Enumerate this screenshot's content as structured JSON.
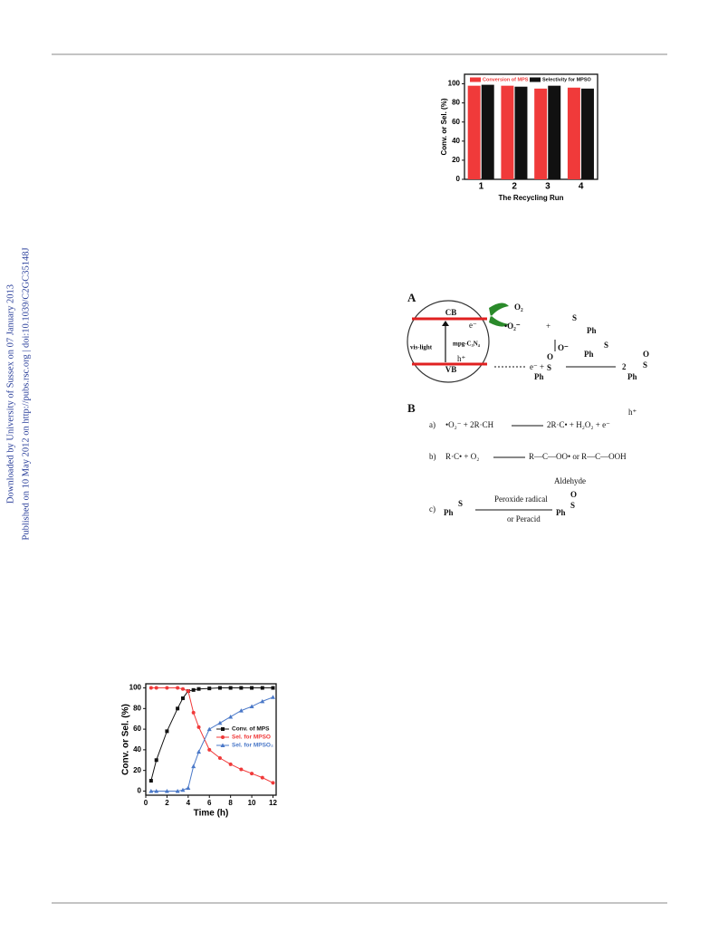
{
  "side_note": [
    "Downloaded by University of Sussex on 07 January 2013",
    "Published on 10 May 2012 on http://pubs.rsc.org | doi:10.1039/C2GC35148J"
  ],
  "chart_data": [
    {
      "type": "bar",
      "categories": [
        "1",
        "2",
        "3",
        "4"
      ],
      "series": [
        {
          "name": "Conversion of MPS",
          "color": "#f03a3a",
          "values": [
            98,
            98,
            95,
            96
          ]
        },
        {
          "name": "Selectivity for MPSO",
          "color": "#111111",
          "values": [
            99,
            97,
            98,
            95
          ]
        }
      ],
      "xlabel": "The Recycling Run",
      "ylabel": "Conv. or Sel. (%)",
      "ylim": [
        0,
        110
      ],
      "yticks": [
        0,
        20,
        40,
        60,
        80,
        100
      ],
      "legend": "top"
    },
    {
      "type": "line",
      "x": [
        0.5,
        1,
        2,
        3,
        3.5,
        4,
        4.5,
        5,
        6,
        7,
        8,
        9,
        10,
        11,
        12
      ],
      "series": [
        {
          "name": "Conv. of MPS",
          "color": "#111111",
          "marker": "square",
          "values": [
            10,
            30,
            58,
            80,
            90,
            97,
            98,
            99,
            99.5,
            100,
            100,
            100,
            100,
            100,
            100
          ]
        },
        {
          "name": "Sel. for MPSO",
          "color": "#f03a3a",
          "marker": "circle",
          "values": [
            100,
            100,
            100,
            100,
            99,
            97,
            76,
            62,
            40,
            32,
            26,
            21,
            17,
            13,
            8
          ]
        },
        {
          "name": "Sel. for MPSO₂",
          "color": "#4a78c8",
          "marker": "triangle",
          "values": [
            0,
            0,
            0,
            0,
            1,
            3,
            24,
            38,
            60,
            66,
            72,
            78,
            82,
            87,
            91
          ]
        }
      ],
      "xlabel": "Time (h)",
      "ylabel": "Conv. or Sel. (%)",
      "xlim": [
        0,
        12.3
      ],
      "xticks": [
        0,
        2,
        4,
        6,
        8,
        10,
        12
      ],
      "ylim": [
        -4,
        104
      ],
      "yticks": [
        0,
        20,
        40,
        60,
        80,
        100
      ],
      "legend": "right"
    }
  ],
  "scheme": {
    "panel_a": "A",
    "panel_b": "B",
    "cb": "CB",
    "vb": "VB",
    "light": "vis-light",
    "catalyst": "mpg-C₃N₄",
    "o2": "O₂",
    "electron": "e⁻",
    "hole": "h⁺",
    "superoxide": "•O₂⁻",
    "plus": "+",
    "ph": "Ph",
    "s": "S",
    "o": "O",
    "o_minus": "O⁻",
    "two": "2",
    "a": "a)",
    "b": "b)",
    "c": "c)",
    "ra_left": "•O₂⁻  +  2R·CH",
    "ra_right": "2R·C•  +  H₂O₂  +  e⁻",
    "rb_left": "R·C•  +  O₂",
    "rb_right": "R—C—OO•   or   R—C—OOH",
    "aldehyde": "Aldehyde",
    "peroxide": "Peroxide radical",
    "peracid": "or  Peracid"
  }
}
